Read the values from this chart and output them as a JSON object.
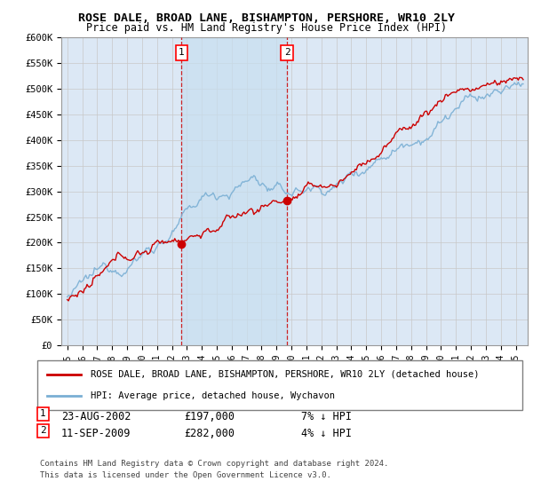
{
  "title": "ROSE DALE, BROAD LANE, BISHAMPTON, PERSHORE, WR10 2LY",
  "subtitle": "Price paid vs. HM Land Registry's House Price Index (HPI)",
  "ylim": [
    0,
    600000
  ],
  "yticks": [
    0,
    50000,
    100000,
    150000,
    200000,
    250000,
    300000,
    350000,
    400000,
    450000,
    500000,
    550000,
    600000
  ],
  "ytick_labels": [
    "£0",
    "£50K",
    "£100K",
    "£150K",
    "£200K",
    "£250K",
    "£300K",
    "£350K",
    "£400K",
    "£450K",
    "£500K",
    "£550K",
    "£600K"
  ],
  "hpi_color": "#7aafd4",
  "price_color": "#cc0000",
  "sale1_date": "23-AUG-2002",
  "sale1_price": 197000,
  "sale1_hpi": "7% ↓ HPI",
  "sale1_label": "1",
  "sale1_x": 2002.64,
  "sale2_date": "11-SEP-2009",
  "sale2_price": 282000,
  "sale2_hpi": "4% ↓ HPI",
  "sale2_label": "2",
  "sale2_x": 2009.7,
  "legend_property": "ROSE DALE, BROAD LANE, BISHAMPTON, PERSHORE, WR10 2LY (detached house)",
  "legend_hpi": "HPI: Average price, detached house, Wychavon",
  "footnote": "Contains HM Land Registry data © Crown copyright and database right 2024.\nThis data is licensed under the Open Government Licence v3.0.",
  "bg_color": "#dce8f5",
  "shade_color": "#d0e4f7",
  "grid_color": "#c8c8c8"
}
